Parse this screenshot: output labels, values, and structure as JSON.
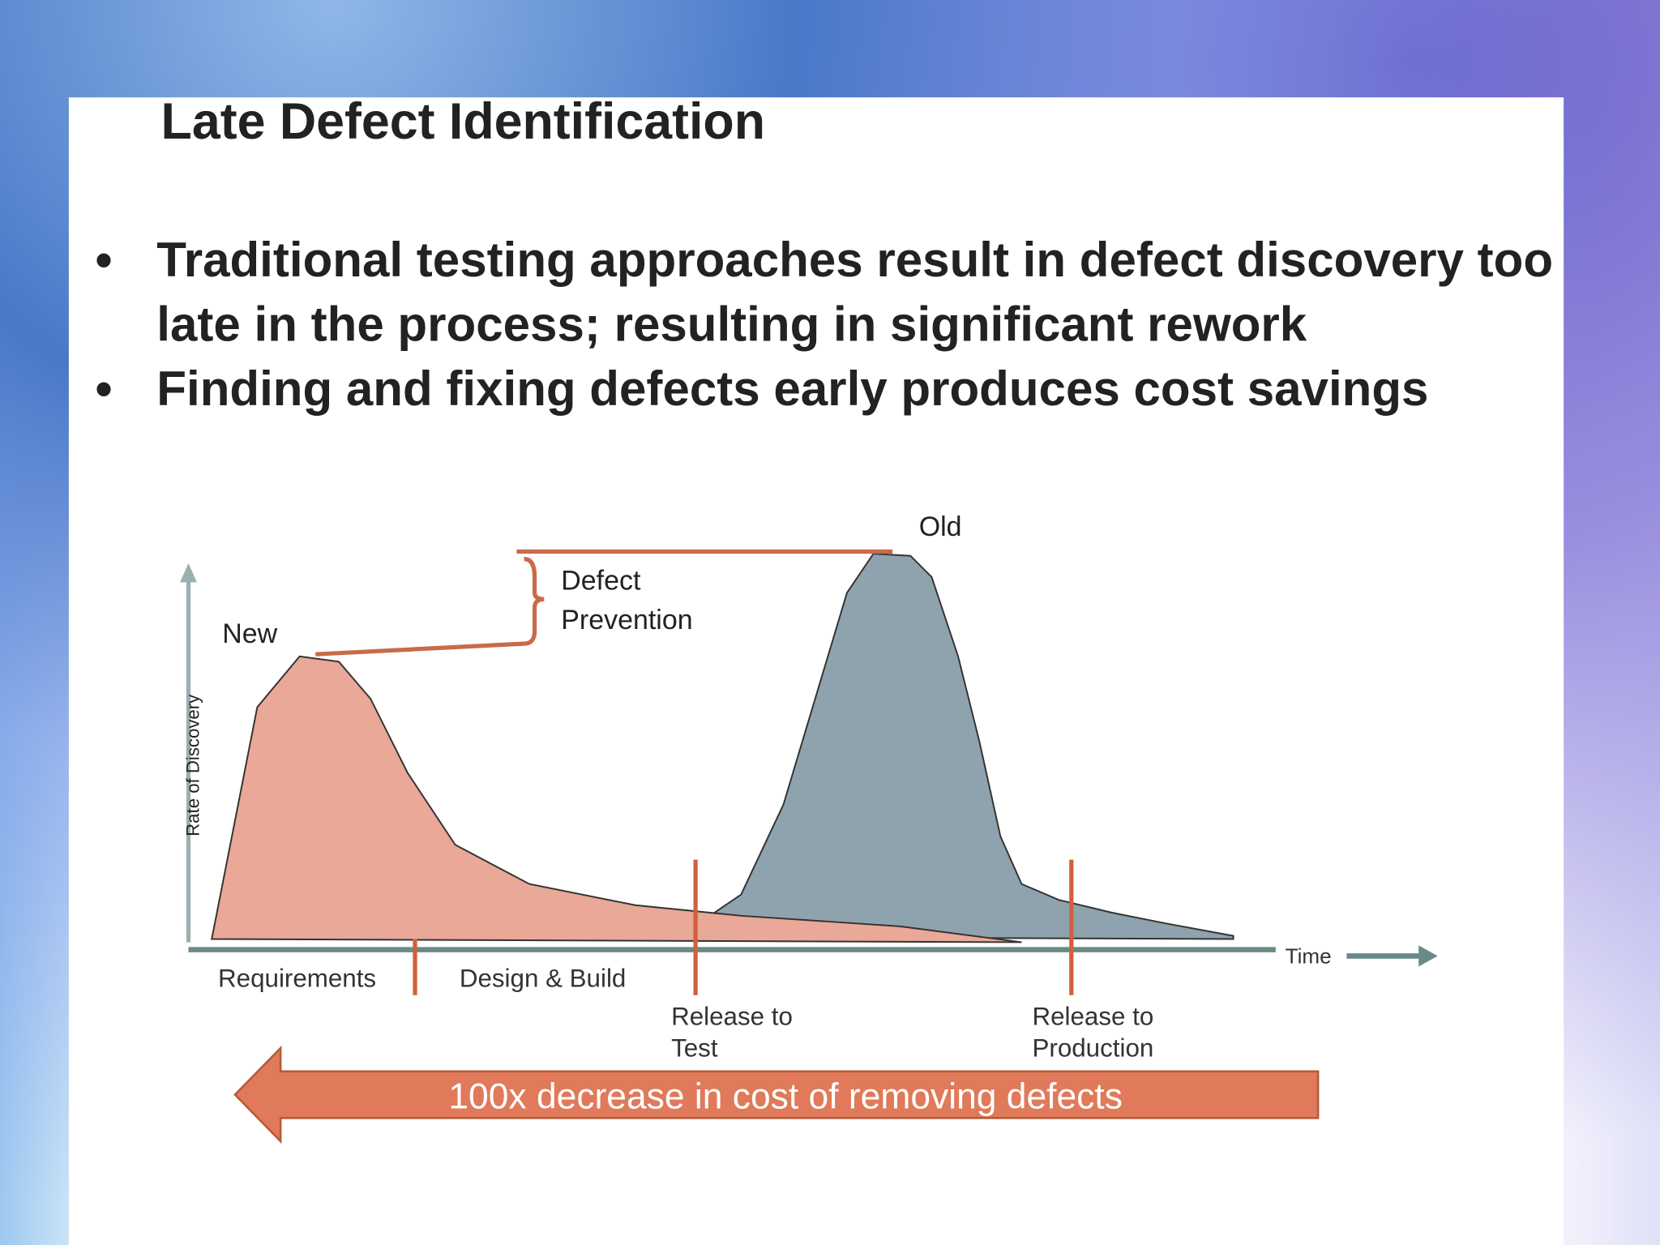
{
  "title": "Late Defect Identification",
  "bullets": [
    "Traditional testing approaches result in defect discovery too late in the process; resulting in significant rework",
    "Finding and fixing defects early produces cost savings"
  ],
  "diagram": {
    "y_axis_label": "Rate of Discovery",
    "x_axis_label": "Time",
    "new_label": "New",
    "old_label": "Old",
    "bracket_label": "Defect Prevention",
    "phases": [
      "Requirements",
      "Design & Build"
    ],
    "milestones": [
      "Release to Test",
      "Release to Production"
    ],
    "arrow_label": "100x decrease in cost of removing defects"
  }
}
